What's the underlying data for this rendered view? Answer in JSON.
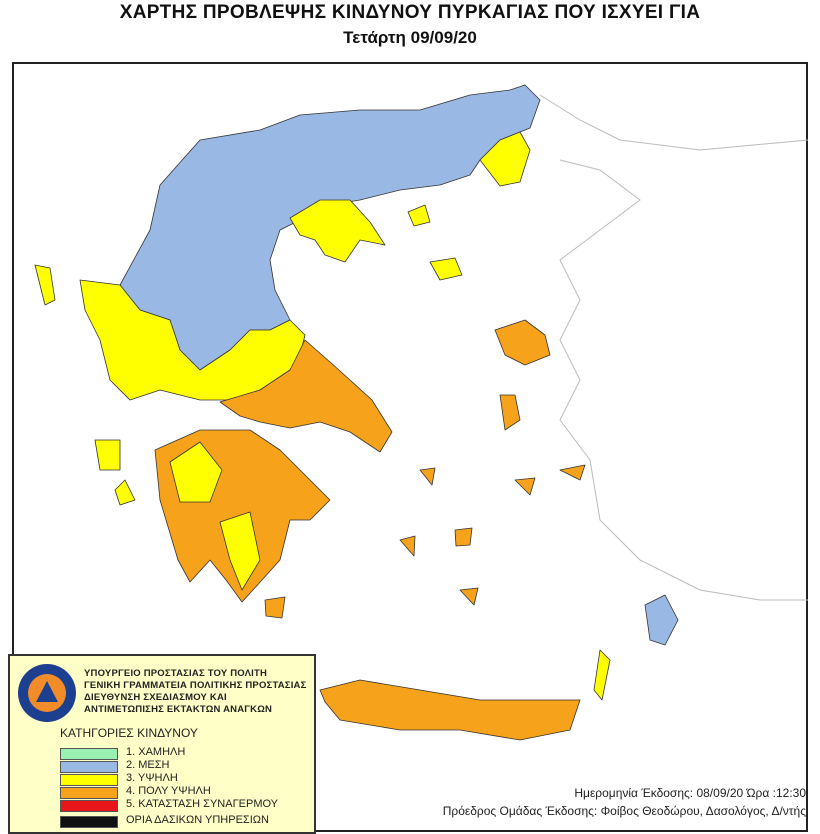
{
  "title": "ΧΑΡΤΗΣ ΠΡΟΒΛΕΨΗΣ ΚΙΝΔΥΝΟΥ ΠΥΡΚΑΓΙΑΣ ΠΟΥ ΙΣΧΥΕΙ ΓΙΑ",
  "subtitle": "Τετάρτη 09/09/20",
  "legend": {
    "logo_icon": "civil-protection-logo",
    "org_lines": [
      "ΥΠΟΥΡΓΕΙΟ ΠΡΟΣΤΑΣΙΑΣ ΤΟΥ ΠΟΛΙΤΗ",
      "ΓΕΝΙΚΗ ΓΡΑΜΜΑΤΕΙΑ ΠΟΛΙΤΙΚΗΣ ΠΡΟΣΤΑΣΙΑΣ",
      "ΔΙΕΥΘΥΝΣΗ ΣΧΕΔΙΑΣΜΟΥ ΚΑΙ",
      "ΑΝΤΙΜΕΤΩΠΙΣΗΣ ΕΚΤΑΚΤΩΝ ΑΝΑΓΚΩΝ"
    ],
    "categories_title": "ΚΑΤΗΓΟΡΙΕΣ ΚΙΝΔΥΝΟΥ",
    "categories": [
      {
        "label": "1. ΧΑΜΗΛΗ",
        "color": "#99f0b0"
      },
      {
        "label": "2. ΜΕΣΗ",
        "color": "#9ab8e4"
      },
      {
        "label": "3. ΥΨΗΛΗ",
        "color": "#ffff00"
      },
      {
        "label": "4. ΠΟΛΥ ΥΨΗΛΗ",
        "color": "#f7a21b"
      },
      {
        "label": "5. ΚΑΤΑΣΤΑΣΗ ΣΥΝΑΓΕΡΜΟΥ",
        "color": "#e8161b"
      }
    ],
    "borders_label": "ΟΡΙΑ ΔΑΣΙΚΩΝ ΥΠΗΡΕΣΙΩΝ"
  },
  "footer": {
    "issue_date": "Ημερομηνία Έκδοσης: 08/09/20  Ώρα :12:30",
    "issuer": "Πρόεδρος Ομάδας Έκδοσης: Φοίβος Θεοδώρου,  Δασολόγος, Δ/ντής"
  },
  "regions": {
    "northern_greece": 2,
    "epirus_thessaly_west": 3,
    "chalkidiki": 3,
    "eastern_thrace": 3,
    "central_greece_attica_evia": 4,
    "peloponnese": 4,
    "peloponnese_inner": 3,
    "crete": 4,
    "lesvos": 4,
    "chios": 4,
    "rhodes": 2,
    "lemnos": 3,
    "thasos": 3,
    "corfu": 3,
    "kefalonia": 3,
    "zakynthos": 3,
    "karpathos": 3,
    "cyclades": 4
  }
}
